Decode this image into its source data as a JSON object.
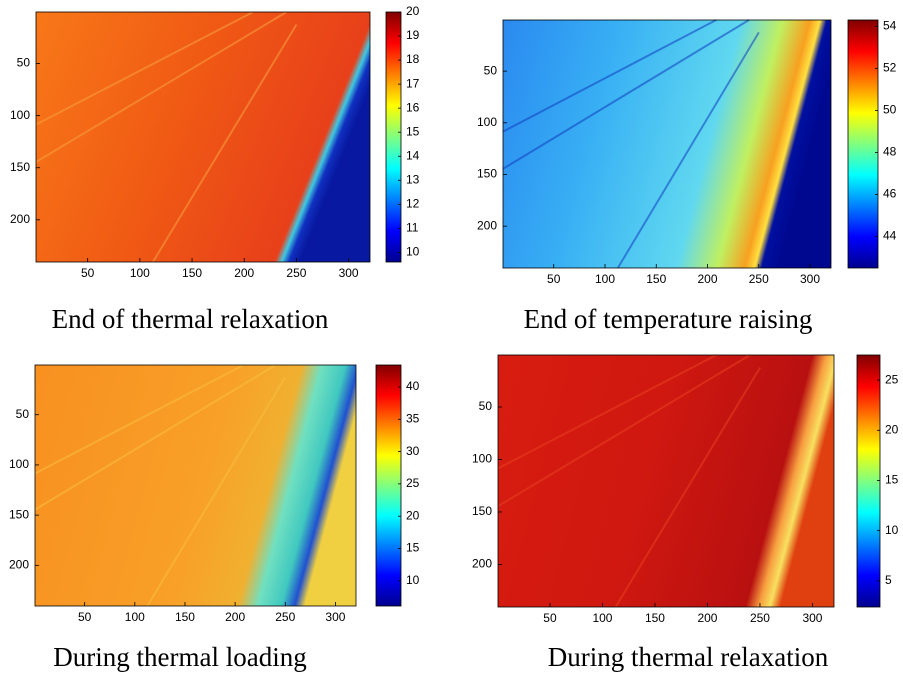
{
  "chart_data": [
    {
      "type": "heatmap",
      "title": "End of thermal relaxation",
      "xlim": [
        0.5,
        320.5
      ],
      "ylim": [
        0.5,
        240.5
      ],
      "xticks": [
        50,
        100,
        150,
        200,
        250,
        300
      ],
      "yticks": [
        50,
        100,
        150,
        200
      ],
      "clim": [
        9.6,
        20
      ],
      "cticks": [
        10,
        11,
        12,
        13,
        14,
        15,
        16,
        17,
        18,
        19,
        20
      ]
    },
    {
      "type": "heatmap",
      "title": "End of temperature raising",
      "xlim": [
        0.5,
        320.5
      ],
      "ylim": [
        0.5,
        240.5
      ],
      "xticks": [
        50,
        100,
        150,
        200,
        250,
        300
      ],
      "yticks": [
        50,
        100,
        150,
        200
      ],
      "clim": [
        42.5,
        54.3
      ],
      "cticks": [
        44,
        46,
        48,
        50,
        52,
        54
      ]
    },
    {
      "type": "heatmap",
      "title": "During thermal loading",
      "xlim": [
        0.5,
        320.5
      ],
      "ylim": [
        0.5,
        240.5
      ],
      "xticks": [
        50,
        100,
        150,
        200,
        250,
        300
      ],
      "yticks": [
        50,
        100,
        150,
        200
      ],
      "clim": [
        6.1,
        43.4
      ],
      "cticks": [
        10,
        15,
        20,
        25,
        30,
        35,
        40
      ]
    },
    {
      "type": "heatmap",
      "title": "During thermal relaxation",
      "xlim": [
        0.5,
        320.5
      ],
      "ylim": [
        0.5,
        240.5
      ],
      "xticks": [
        50,
        100,
        150,
        200,
        250,
        300
      ],
      "yticks": [
        50,
        100,
        150,
        200
      ],
      "clim": [
        2.4,
        27.5
      ],
      "cticks": [
        5,
        10,
        15,
        20,
        25
      ]
    }
  ]
}
